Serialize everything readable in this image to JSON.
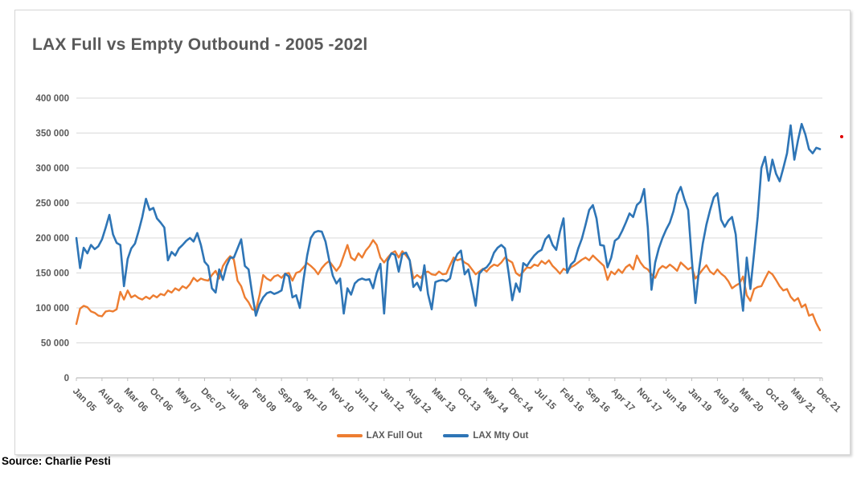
{
  "title": "LAX Full vs Empty Outbound - 2005 -202l",
  "source": "Source: Charlie Pesti",
  "colors": {
    "full_out": "#ED7D31",
    "mty_out": "#2E75B6",
    "gridline": "#D9D9D9",
    "axis_line": "#BFBFBF",
    "axis_text": "#595959",
    "title_text": "#595959",
    "stray_dot": "#E00000"
  },
  "legend": {
    "position": "bottom-center",
    "items": [
      {
        "label": "LAX Full Out",
        "color": "#ED7D31"
      },
      {
        "label": "LAX Mty Out",
        "color": "#2E75B6"
      }
    ]
  },
  "chart_data": {
    "type": "line",
    "title": "LAX Full vs Empty Outbound - 2005 -202l",
    "x_start": "Jan 2005",
    "x_end": "Dec 2021",
    "months_total": 204,
    "x_tick_interval_months": 7,
    "x_tick_labels": [
      "Jan 05",
      "Aug 05",
      "Mar 06",
      "Oct 06",
      "May 07",
      "Dec 07",
      "Jul 08",
      "Feb 09",
      "Sep 09",
      "Apr 10",
      "Nov 10",
      "Jun 11",
      "Jan 12",
      "Aug 12",
      "Mar 13",
      "Oct 13",
      "May 14",
      "Dec 14",
      "Jul 15",
      "Feb 16",
      "Sep 16",
      "Apr 17",
      "Nov 17",
      "Jun 18",
      "Jan 19",
      "Aug 19",
      "Mar 20",
      "Oct 20",
      "May 21",
      "Dec 21"
    ],
    "ylim": [
      0,
      400000
    ],
    "y_tick_step": 50000,
    "y_tick_labels": [
      "0",
      "50 000",
      "100 000",
      "150 000",
      "200 000",
      "250 000",
      "300 000",
      "350 000",
      "400 000"
    ],
    "grid": "horizontal",
    "legend_position": "bottom",
    "series": [
      {
        "name": "LAX Full Out",
        "color": "#ED7D31",
        "values": [
          77000,
          99000,
          103000,
          101000,
          95000,
          93000,
          89000,
          88000,
          95000,
          96000,
          95000,
          98000,
          123000,
          112000,
          125000,
          115000,
          118000,
          114000,
          112000,
          116000,
          113000,
          118000,
          115000,
          120000,
          118000,
          125000,
          122000,
          128000,
          125000,
          131000,
          128000,
          134000,
          143000,
          138000,
          142000,
          140000,
          139000,
          147000,
          153000,
          142000,
          160000,
          168000,
          174000,
          169000,
          139000,
          131000,
          115000,
          108000,
          98000,
          96000,
          118000,
          147000,
          142000,
          139000,
          145000,
          147000,
          143000,
          149000,
          150000,
          139000,
          150000,
          152000,
          158000,
          164000,
          160000,
          155000,
          148000,
          157000,
          163000,
          167000,
          160000,
          153000,
          160000,
          175000,
          190000,
          172000,
          168000,
          178000,
          172000,
          182000,
          188000,
          197000,
          190000,
          172000,
          165000,
          172000,
          178000,
          181000,
          172000,
          181000,
          175000,
          168000,
          142000,
          147000,
          143000,
          150000,
          152000,
          148000,
          147000,
          152000,
          148000,
          149000,
          161000,
          172000,
          168000,
          170000,
          165000,
          162000,
          155000,
          148000,
          152000,
          156000,
          152000,
          158000,
          162000,
          160000,
          165000,
          172000,
          168000,
          165000,
          150000,
          146000,
          152000,
          158000,
          157000,
          162000,
          160000,
          167000,
          163000,
          168000,
          160000,
          155000,
          149000,
          156000,
          153000,
          158000,
          161000,
          165000,
          169000,
          172000,
          168000,
          175000,
          170000,
          165000,
          160000,
          140000,
          152000,
          148000,
          155000,
          150000,
          158000,
          162000,
          155000,
          175000,
          165000,
          158000,
          155000,
          148000,
          143000,
          155000,
          160000,
          157000,
          162000,
          158000,
          153000,
          165000,
          160000,
          155000,
          158000,
          142000,
          148000,
          155000,
          161000,
          152000,
          148000,
          155000,
          149000,
          145000,
          138000,
          128000,
          132000,
          135000,
          145000,
          118000,
          110000,
          127000,
          130000,
          131000,
          142000,
          152000,
          148000,
          140000,
          131000,
          125000,
          127000,
          116000,
          110000,
          114000,
          101000,
          105000,
          89000,
          91000,
          78000,
          68000
        ]
      },
      {
        "name": "LAX Mty Out",
        "color": "#2E75B6",
        "values": [
          200000,
          157000,
          186000,
          178000,
          190000,
          184000,
          188000,
          198000,
          215000,
          233000,
          205000,
          193000,
          190000,
          131000,
          170000,
          185000,
          192000,
          210000,
          230000,
          256000,
          240000,
          243000,
          228000,
          222000,
          215000,
          168000,
          180000,
          175000,
          185000,
          190000,
          196000,
          200000,
          195000,
          207000,
          190000,
          166000,
          160000,
          128000,
          122000,
          155000,
          140000,
          160000,
          172000,
          172000,
          185000,
          198000,
          160000,
          155000,
          120000,
          89000,
          105000,
          115000,
          121000,
          123000,
          120000,
          122000,
          125000,
          149000,
          145000,
          115000,
          118000,
          100000,
          140000,
          175000,
          200000,
          208000,
          210000,
          209000,
          195000,
          169000,
          146000,
          135000,
          142000,
          92000,
          128000,
          119000,
          135000,
          140000,
          142000,
          140000,
          141000,
          128000,
          150000,
          163000,
          92000,
          167000,
          178000,
          176000,
          152000,
          177000,
          179000,
          168000,
          130000,
          136000,
          125000,
          161000,
          120000,
          98000,
          137000,
          139000,
          140000,
          138000,
          142000,
          165000,
          177000,
          182000,
          148000,
          155000,
          130000,
          103000,
          149000,
          155000,
          158000,
          165000,
          179000,
          186000,
          190000,
          185000,
          150000,
          111000,
          135000,
          123000,
          164000,
          160000,
          168000,
          175000,
          180000,
          183000,
          198000,
          204000,
          190000,
          183000,
          209000,
          228000,
          150000,
          162000,
          167000,
          185000,
          199000,
          219000,
          240000,
          247000,
          228000,
          190000,
          189000,
          158000,
          172000,
          196000,
          200000,
          210000,
          222000,
          235000,
          230000,
          247000,
          252000,
          270000,
          215000,
          126000,
          165000,
          185000,
          200000,
          212000,
          222000,
          238000,
          262000,
          273000,
          255000,
          240000,
          170000,
          107000,
          155000,
          192000,
          219000,
          240000,
          258000,
          264000,
          226000,
          216000,
          225000,
          230000,
          205000,
          140000,
          96000,
          172000,
          127000,
          178000,
          230000,
          300000,
          316000,
          282000,
          312000,
          292000,
          281000,
          300000,
          321000,
          361000,
          312000,
          340000,
          363000,
          348000,
          327000,
          321000,
          329000,
          327000
        ]
      }
    ]
  }
}
